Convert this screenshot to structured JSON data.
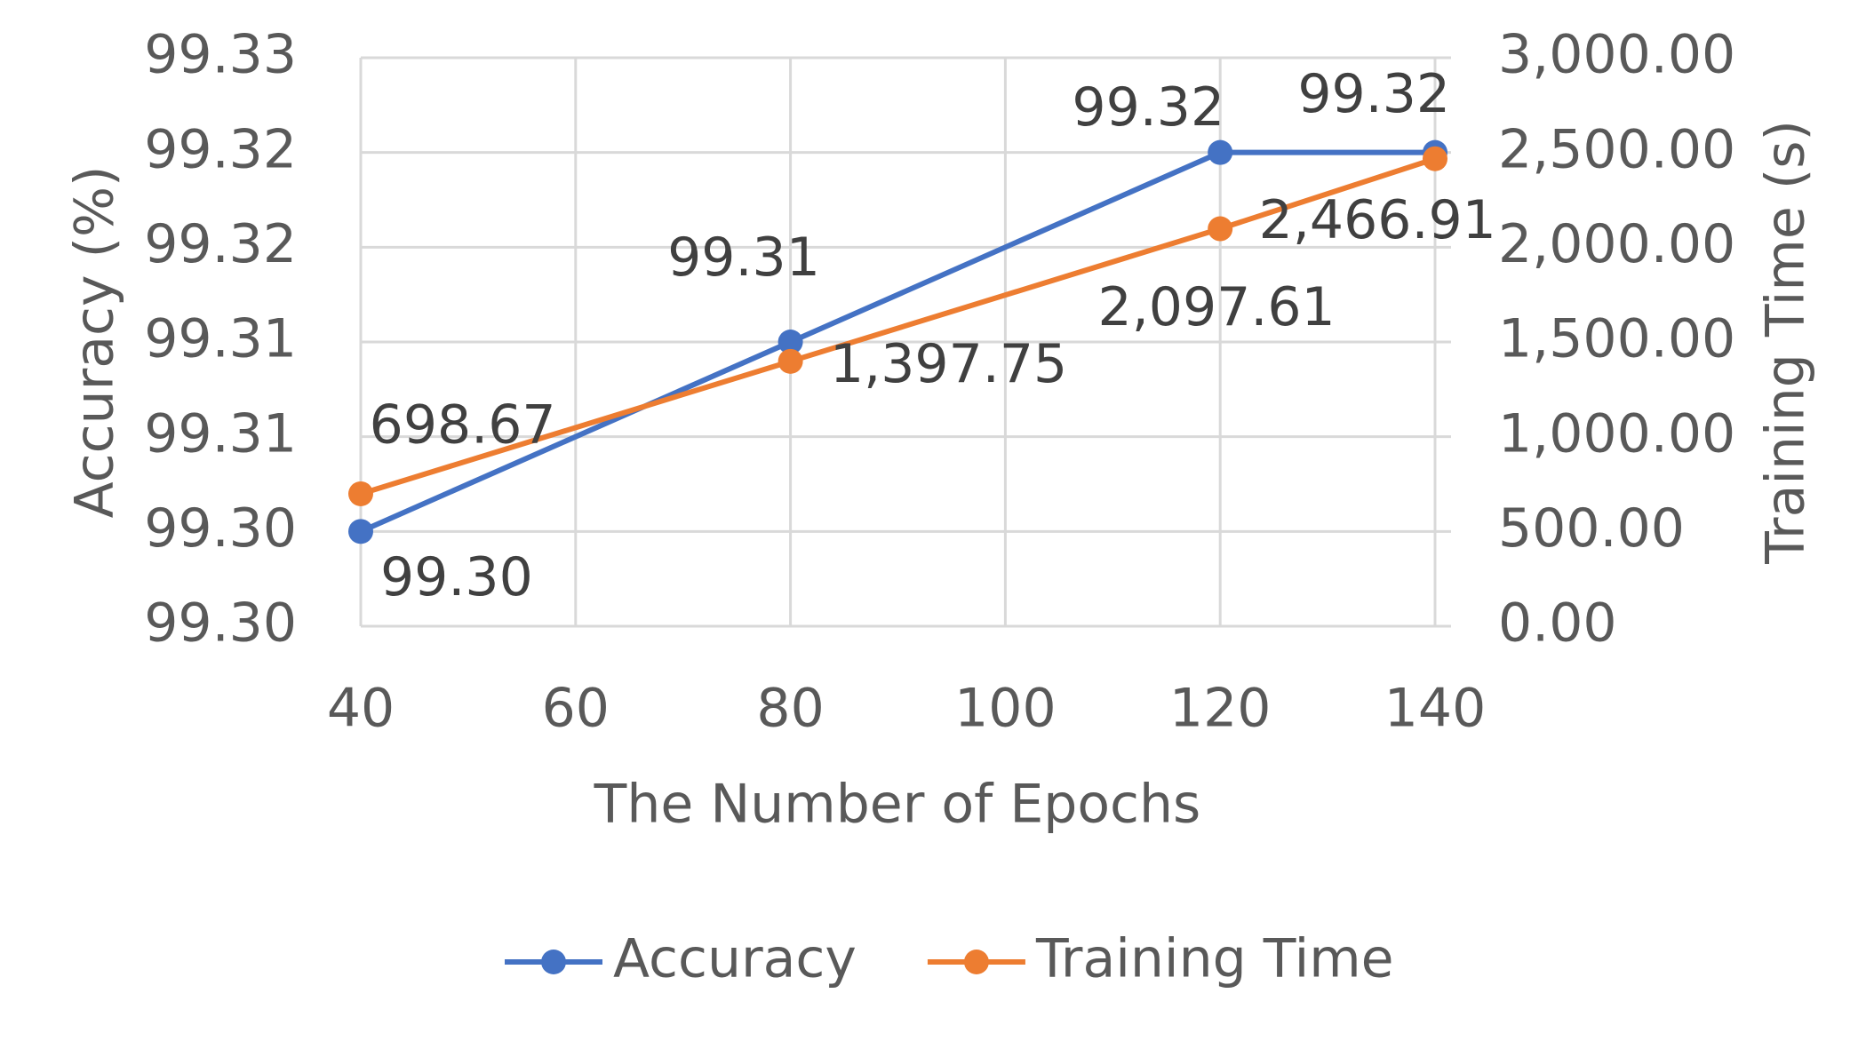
{
  "chart_data": {
    "type": "line",
    "x_label": "The Number of Epochs",
    "y_label": "Accuracy (%)",
    "y2_label": "Training Time (s)",
    "x": [
      40,
      80,
      120,
      140
    ],
    "xlim": [
      40,
      140
    ],
    "xticks": [
      40,
      60,
      80,
      100,
      120,
      140
    ],
    "ylim": [
      99.295,
      99.325
    ],
    "yticks": [
      {
        "value": 99.295,
        "label": "99.30"
      },
      {
        "value": 99.3,
        "label": "99.30"
      },
      {
        "value": 99.305,
        "label": "99.31"
      },
      {
        "value": 99.31,
        "label": "99.31"
      },
      {
        "value": 99.315,
        "label": "99.32"
      },
      {
        "value": 99.32,
        "label": "99.32"
      },
      {
        "value": 99.325,
        "label": "99.33"
      }
    ],
    "y2lim": [
      0,
      3000
    ],
    "y2ticks": [
      {
        "value": 0,
        "label": "0.00"
      },
      {
        "value": 500,
        "label": "500.00"
      },
      {
        "value": 1000,
        "label": "1,000.00"
      },
      {
        "value": 1500,
        "label": "1,500.00"
      },
      {
        "value": 2000,
        "label": "2,000.00"
      },
      {
        "value": 2500,
        "label": "2,500.00"
      },
      {
        "value": 3000,
        "label": "3,000.00"
      }
    ],
    "grid": true,
    "legend": "bottom",
    "series": [
      {
        "name": "Accuracy",
        "color": "#4472c4",
        "values": [
          99.3,
          99.31,
          99.32,
          99.32
        ],
        "value_labels": [
          "99.30",
          "99.31",
          "99.32",
          "99.32"
        ]
      },
      {
        "name": "Training Time",
        "color": "#ed7d31",
        "axis": "y2",
        "values": [
          698.67,
          1397.75,
          2097.61,
          2466.91
        ],
        "value_labels": [
          "698.67",
          "1,397.75",
          "2,097.61",
          "2,466.91"
        ]
      }
    ]
  }
}
